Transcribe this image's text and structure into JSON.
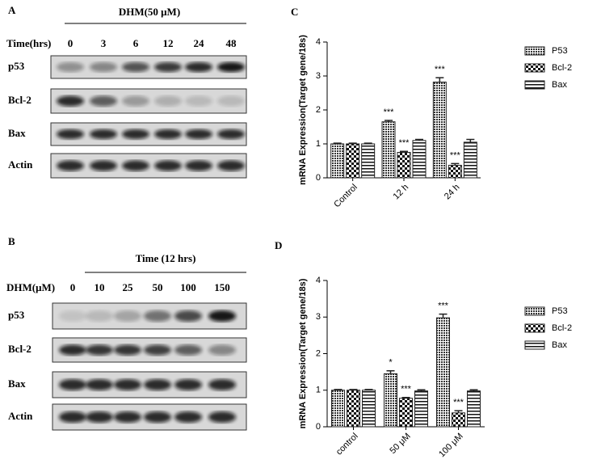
{
  "panels": {
    "A": {
      "label": "A",
      "treatment": "DHM(50 μM)",
      "axis_label": "Time(hrs)",
      "lanes": [
        "0",
        "3",
        "6",
        "12",
        "24",
        "48"
      ],
      "rows": [
        "p53",
        "Bcl-2",
        "Bax",
        "Actin"
      ]
    },
    "B": {
      "label": "B",
      "treatment": "Time (12 hrs)",
      "axis_label": "DHM(μM)",
      "lanes": [
        "0",
        "10",
        "25",
        "50",
        "100",
        "150"
      ],
      "rows": [
        "p53",
        "Bcl-2",
        "Bax",
        "Actin"
      ]
    }
  },
  "chart_data": [
    {
      "type": "bar",
      "panel_label": "C",
      "y_label": "mRNA Expression(Target gene/18s)",
      "categories": [
        "Control",
        "12 h",
        "24 h"
      ],
      "series": [
        {
          "name": "P53",
          "color": "#222222",
          "pattern": "dots",
          "values": [
            1,
            1.65,
            2.82
          ],
          "errors": [
            0.02,
            0.04,
            0.13
          ],
          "significance": [
            null,
            "***",
            "***"
          ]
        },
        {
          "name": "Bcl-2",
          "color": "#222222",
          "pattern": "checker",
          "values": [
            1,
            0.75,
            0.37
          ],
          "errors": [
            0.02,
            0.03,
            0.05
          ],
          "significance": [
            null,
            "***",
            "***"
          ]
        },
        {
          "name": "Bax",
          "color": "#222222",
          "pattern": "hlines",
          "values": [
            1,
            1.1,
            1.05
          ],
          "errors": [
            0.02,
            0.03,
            0.08
          ]
        }
      ],
      "ylim": [
        0,
        4
      ],
      "yticks": [
        0,
        1,
        2,
        3,
        4
      ],
      "legend": "right"
    },
    {
      "type": "bar",
      "panel_label": "D",
      "y_label": "mRNA Expression(Target gene/18s)",
      "categories": [
        "control",
        "50 μM",
        "100 μM"
      ],
      "series": [
        {
          "name": "P53",
          "color": "#222222",
          "pattern": "dots",
          "values": [
            1,
            1.45,
            2.98
          ],
          "errors": [
            0.02,
            0.08,
            0.1
          ],
          "significance": [
            null,
            "*",
            "***"
          ]
        },
        {
          "name": "Bcl-2",
          "color": "#222222",
          "pattern": "checker",
          "values": [
            1,
            0.78,
            0.38
          ],
          "errors": [
            0.02,
            0.02,
            0.06
          ],
          "significance": [
            null,
            "***",
            "***"
          ]
        },
        {
          "name": "Bax",
          "color": "#222222",
          "pattern": "hlines",
          "values": [
            1,
            0.98,
            0.98
          ],
          "errors": [
            0.02,
            0.03,
            0.03
          ]
        }
      ],
      "ylim": [
        0,
        4
      ],
      "yticks": [
        0,
        1,
        2,
        3,
        4
      ],
      "legend": "right"
    }
  ]
}
